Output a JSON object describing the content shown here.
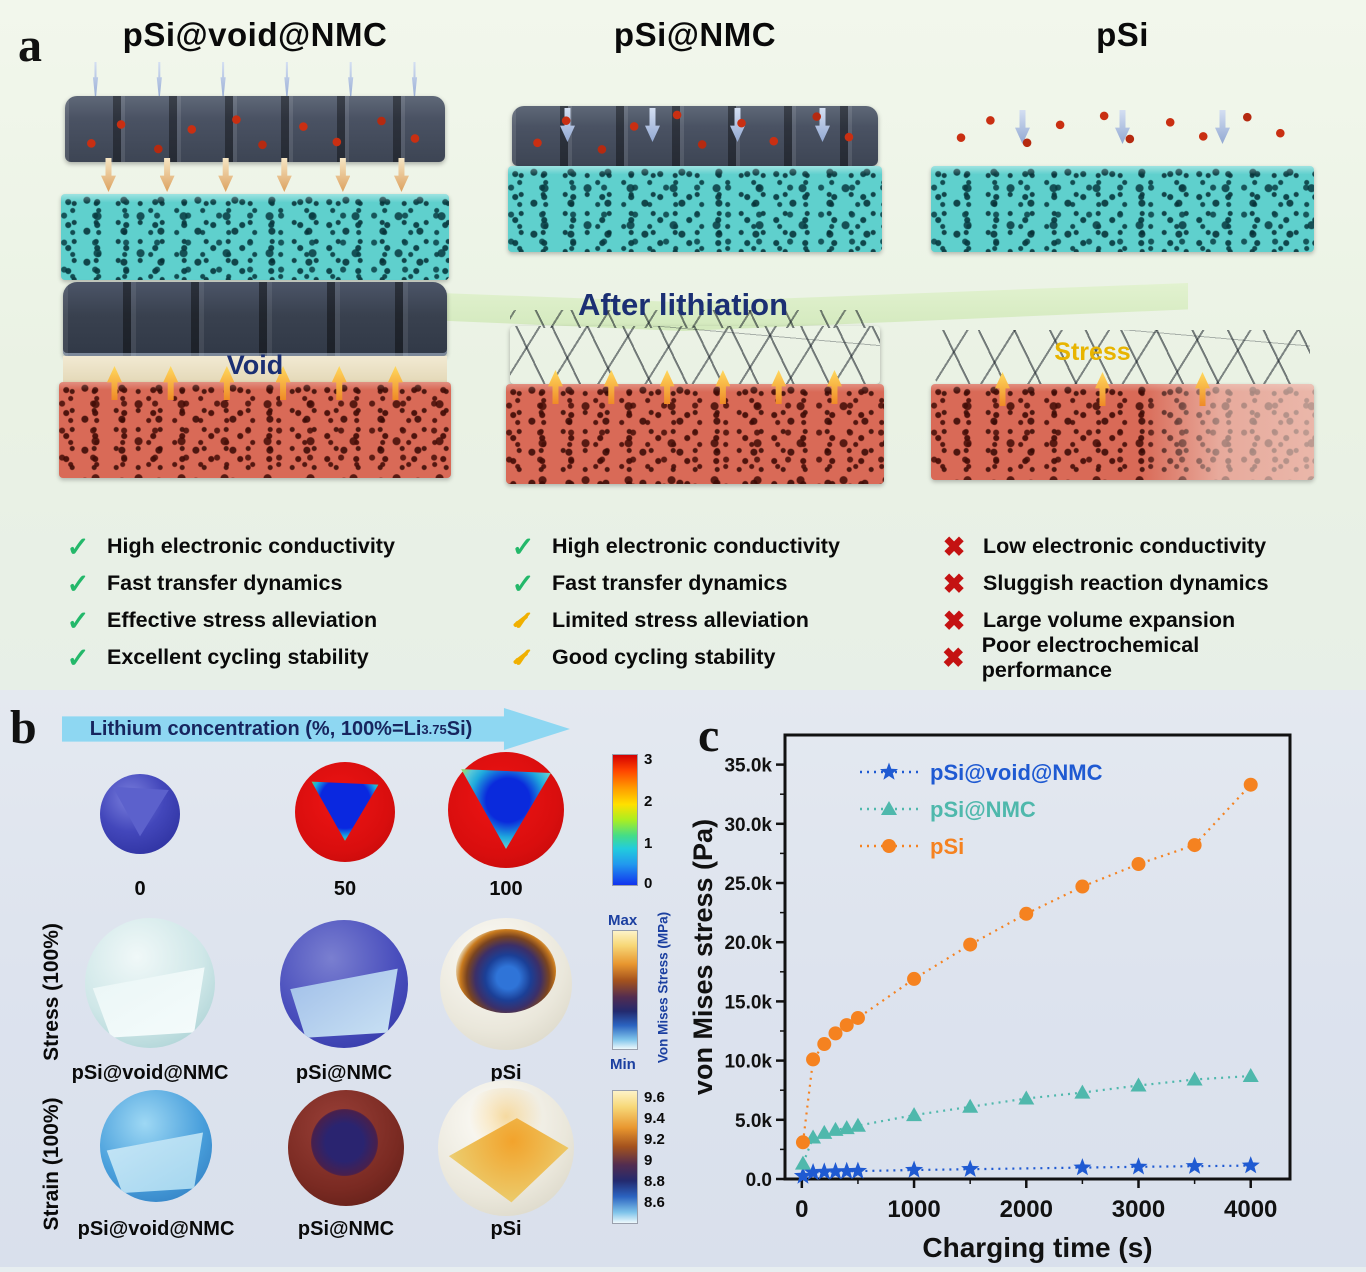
{
  "colors": {
    "check_green": "#23b86a",
    "check_yellow": "#f0b000",
    "cross_red": "#c41212",
    "after_lithiation_text": "#1b2f73",
    "void_text": "#1b2f73",
    "stress_text": "#e8b400",
    "lith_arrow_fill": "#8ed7f2"
  },
  "panel_a": {
    "label": "a",
    "after_lithiation": "After lithiation",
    "columns": [
      {
        "title": "pSi@void@NMC",
        "overlay_label": "Void",
        "checklist": [
          {
            "icon": "check",
            "text": "High electronic conductivity"
          },
          {
            "icon": "check",
            "text": "Fast transfer dynamics"
          },
          {
            "icon": "check",
            "text": "Effective stress alleviation"
          },
          {
            "icon": "check",
            "text": "Excellent cycling stability"
          }
        ]
      },
      {
        "title": "pSi@NMC",
        "overlay_label": "",
        "checklist": [
          {
            "icon": "check",
            "text": "High electronic conductivity"
          },
          {
            "icon": "check",
            "text": "Fast transfer dynamics"
          },
          {
            "icon": "check-limited",
            "text": "Limited stress alleviation"
          },
          {
            "icon": "check-limited",
            "text": "Good cycling stability"
          }
        ]
      },
      {
        "title": "pSi",
        "overlay_label": "Stress",
        "checklist": [
          {
            "icon": "cross",
            "text": "Low electronic conductivity"
          },
          {
            "icon": "cross",
            "text": "Sluggish reaction dynamics"
          },
          {
            "icon": "cross",
            "text": "Large volume expansion"
          },
          {
            "icon": "cross",
            "text": "Poor electrochemical performance"
          }
        ]
      }
    ]
  },
  "panel_b": {
    "label": "b",
    "arrow_label_prefix": "Lithium concentration (%, 100%=Li",
    "arrow_label_sub": "3.75",
    "arrow_label_suffix": "Si)",
    "concentration": {
      "labels": [
        "0",
        "50",
        "100"
      ],
      "colorbar_ticks": [
        "3",
        "2",
        "1",
        "0"
      ]
    },
    "stress": {
      "row_label": "Stress (100%)",
      "sphere_labels": [
        "pSi@void@NMC",
        "pSi@NMC",
        "pSi"
      ],
      "colorbar_max": "Max",
      "colorbar_min": "Min",
      "colorbar_title": "Von Mises Stress (MPa)"
    },
    "strain": {
      "row_label": "Strain (100%)",
      "sphere_labels": [
        "pSi@void@NMC",
        "pSi@NMC",
        "pSi"
      ],
      "colorbar_ticks": [
        "9.6",
        "9.4",
        "9.2",
        "9",
        "8.8",
        "8.6"
      ]
    }
  },
  "panel_c": {
    "label": "c"
  },
  "chart_data": {
    "type": "scatter",
    "title": "",
    "xlabel": "Charging time (s)",
    "ylabel": "von Mises stress (Pa)",
    "xlim": [
      -150,
      4350
    ],
    "ylim": [
      0,
      37500
    ],
    "x_ticks": [
      0,
      1000,
      2000,
      3000,
      4000
    ],
    "x_tick_labels": [
      "0",
      "1000",
      "2000",
      "3000",
      "4000"
    ],
    "y_ticks": [
      0,
      5000,
      10000,
      15000,
      20000,
      25000,
      30000,
      35000
    ],
    "y_tick_labels": [
      "0.0",
      "5.0k",
      "10.0k",
      "15.0k",
      "20.0k",
      "25.0k",
      "30.0k",
      "35.0k"
    ],
    "grid": false,
    "legend_position": "top-left",
    "series": [
      {
        "name": "pSi@void@NMC",
        "color": "#1f5ad2",
        "marker": "star",
        "line": "dotted",
        "x": [
          10,
          100,
          200,
          300,
          400,
          500,
          1000,
          1500,
          2500,
          3000,
          3500,
          4000
        ],
        "y": [
          250,
          550,
          600,
          630,
          650,
          670,
          760,
          830,
          960,
          1030,
          1080,
          1130
        ]
      },
      {
        "name": "pSi@NMC",
        "color": "#4fb8ac",
        "marker": "triangle",
        "line": "dotted",
        "x": [
          10,
          100,
          200,
          300,
          400,
          500,
          1000,
          1500,
          2000,
          2500,
          3000,
          3500,
          4000
        ],
        "y": [
          1300,
          3500,
          3900,
          4150,
          4300,
          4500,
          5400,
          6100,
          6800,
          7300,
          7900,
          8400,
          8700
        ]
      },
      {
        "name": "pSi",
        "color": "#f58220",
        "marker": "circle",
        "line": "dotted",
        "x": [
          10,
          100,
          200,
          300,
          400,
          500,
          1000,
          1500,
          2000,
          2500,
          3000,
          3500,
          4000
        ],
        "y": [
          3100,
          10100,
          11400,
          12300,
          13000,
          13600,
          16900,
          19800,
          22400,
          24700,
          26600,
          28200,
          33300
        ]
      }
    ]
  }
}
